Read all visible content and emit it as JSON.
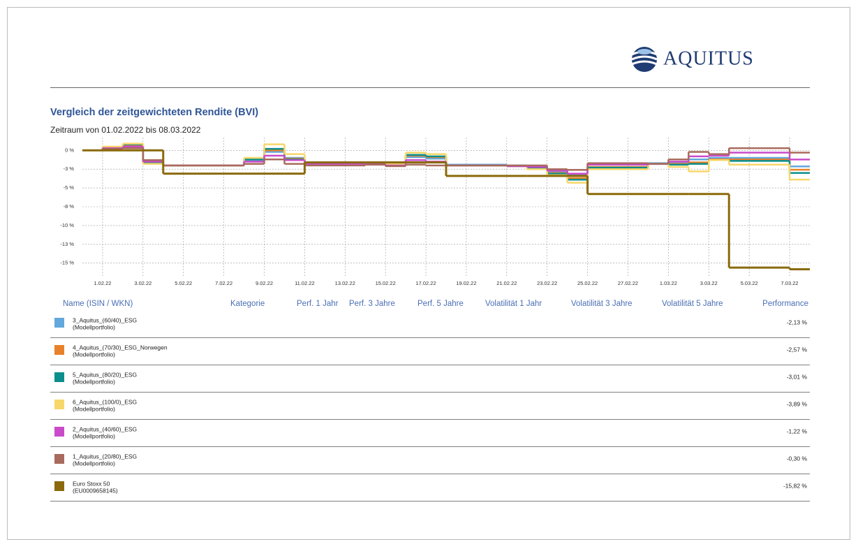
{
  "header": {
    "logo": "AQUITUS"
  },
  "chart_data": {
    "type": "step",
    "title": "Vergleich der zeitgewichteten Rendite (BVI)",
    "subtitle": "Zeitraum von 01.02.2022 bis 08.03.2022",
    "x": [
      "31.01.22",
      "1.02.22",
      "2.02.22",
      "3.02.22",
      "4.02.22",
      "7.02.22",
      "8.02.22",
      "9.02.22",
      "10.02.22",
      "11.02.22",
      "14.02.22",
      "15.02.22",
      "16.02.22",
      "17.02.22",
      "18.02.22",
      "21.02.22",
      "22.02.22",
      "23.02.22",
      "24.02.22",
      "25.02.22",
      "28.02.22",
      "1.03.22",
      "2.03.22",
      "3.03.22",
      "4.03.22",
      "7.03.22"
    ],
    "xlim": [
      "31.01.22",
      "8.03.22"
    ],
    "xticks": [
      "1.02.22",
      "3.02.22",
      "5.02.22",
      "7.02.22",
      "9.02.22",
      "11.02.22",
      "13.02.22",
      "15.02.22",
      "17.02.22",
      "19.02.22",
      "21.02.22",
      "23.02.22",
      "25.02.22",
      "27.02.22",
      "1.03.22",
      "3.03.22",
      "5.03.22",
      "7.03.22"
    ],
    "ylim": [
      -16.7,
      1.7
    ],
    "yticks": [
      {
        "value": 0,
        "label": "0 %"
      },
      {
        "value": -2.5,
        "label": "-3 %"
      },
      {
        "value": -5,
        "label": "-5 %"
      },
      {
        "value": -7.5,
        "label": "-8 %"
      },
      {
        "value": -10,
        "label": "-10 %"
      },
      {
        "value": -12.5,
        "label": "-13 %"
      },
      {
        "value": -15,
        "label": "-15 %"
      }
    ],
    "grid": true,
    "series": [
      {
        "name": "3_Aquitus_(60/40)_ESG",
        "color": "#62a8dc",
        "values": [
          0,
          0.3,
          0.6,
          -1.5,
          -2,
          -2,
          -1.3,
          -0.2,
          -1.0,
          -1.6,
          -1.7,
          -1.9,
          -0.9,
          -1.1,
          -1.9,
          -2.0,
          -2.2,
          -2.8,
          -3.3,
          -1.9,
          -1.7,
          -1.6,
          -1.2,
          -1.0,
          -1.0,
          -2.13
        ]
      },
      {
        "name": "4_Aquitus_(70/30)_ESG_Norwegen",
        "color": "#e8812a",
        "values": [
          0,
          0.4,
          0.7,
          -1.6,
          -2,
          -2,
          -1.2,
          0,
          -1.1,
          -1.7,
          -1.7,
          -1.9,
          -0.7,
          -0.9,
          -2.0,
          -2.1,
          -2.4,
          -3.0,
          -3.7,
          -2.2,
          -1.8,
          -1.8,
          -1.6,
          -1.2,
          -1.2,
          -2.57
        ]
      },
      {
        "name": "5_Aquitus_(80/20)_ESG",
        "color": "#0b8f8b",
        "values": [
          0,
          0.4,
          0.8,
          -1.6,
          -2,
          -2,
          -1.2,
          0.2,
          -1.2,
          -1.7,
          -1.7,
          -1.9,
          -0.6,
          -0.8,
          -2.0,
          -2.1,
          -2.4,
          -3.1,
          -3.9,
          -2.3,
          -1.8,
          -1.9,
          -1.8,
          -1.3,
          -1.4,
          -3.01
        ]
      },
      {
        "name": "6_Aquitus_(100/0)_ESG",
        "color": "#f7d76a",
        "values": [
          0,
          0.5,
          0.9,
          -1.8,
          -2,
          -2,
          -1.0,
          0.8,
          -0.5,
          -1.6,
          -1.6,
          -1.8,
          -0.3,
          -0.5,
          -2.0,
          -2.1,
          -2.5,
          -3.3,
          -4.3,
          -2.5,
          -1.8,
          -2.2,
          -2.8,
          -1.3,
          -1.9,
          -3.89
        ]
      },
      {
        "name": "2_Aquitus_(40/60)_ESG",
        "color": "#c94bc9",
        "values": [
          0,
          0.3,
          0.5,
          -1.5,
          -2,
          -2,
          -1.5,
          -0.7,
          -1.3,
          -1.8,
          -1.8,
          -2.0,
          -1.3,
          -1.5,
          -2.0,
          -2.1,
          -2.2,
          -2.7,
          -3.1,
          -1.9,
          -1.8,
          -1.5,
          -0.8,
          -0.7,
          -0.3,
          -1.22
        ]
      },
      {
        "name": "1_Aquitus_(20/80)_ESG",
        "color": "#a86a5c",
        "values": [
          0,
          0.2,
          0.3,
          -1.3,
          -2,
          -2,
          -1.8,
          -1.2,
          -1.8,
          -2.0,
          -1.9,
          -2.1,
          -1.9,
          -2.0,
          -2.0,
          -2.0,
          -2.0,
          -2.5,
          -2.6,
          -1.7,
          -1.8,
          -1.2,
          -0.2,
          -0.5,
          0.3,
          -0.3
        ]
      },
      {
        "name": "Euro Stoxx 50",
        "color": "#8a6a0a",
        "values": [
          0,
          0,
          0,
          0,
          -3.1,
          -3.1,
          -3.1,
          -3.1,
          -3.1,
          -1.6,
          -1.6,
          -1.6,
          -1.6,
          -1.6,
          -3.4,
          -3.4,
          -3.4,
          -3.4,
          -3.4,
          -5.8,
          -5.8,
          -5.8,
          -5.8,
          -5.8,
          -15.6,
          -15.82
        ]
      }
    ]
  },
  "table": {
    "columns": [
      "Name (ISIN / WKN)",
      "Kategorie",
      "Perf. 1 Jahr",
      "Perf. 3 Jahre",
      "Perf. 5 Jahre",
      "Volatilität 1 Jahr",
      "Volatilität 3 Jahre",
      "Volatilität 5 Jahre",
      "Performance"
    ],
    "rows": [
      {
        "sub": "(Modellportfolio)",
        "performance": "-2,13 %"
      },
      {
        "sub": "(Modellportfolio)",
        "performance": "-2,57 %"
      },
      {
        "sub": "(Modellportfolio)",
        "performance": "-3,01 %"
      },
      {
        "sub": "(Modellportfolio)",
        "performance": "-3,89 %"
      },
      {
        "sub": "(Modellportfolio)",
        "performance": "-1,22 %"
      },
      {
        "sub": "(Modellportfolio)",
        "performance": "-0,30 %"
      },
      {
        "sub": "(EU0009658145)",
        "performance": "-15,82 %"
      }
    ]
  }
}
